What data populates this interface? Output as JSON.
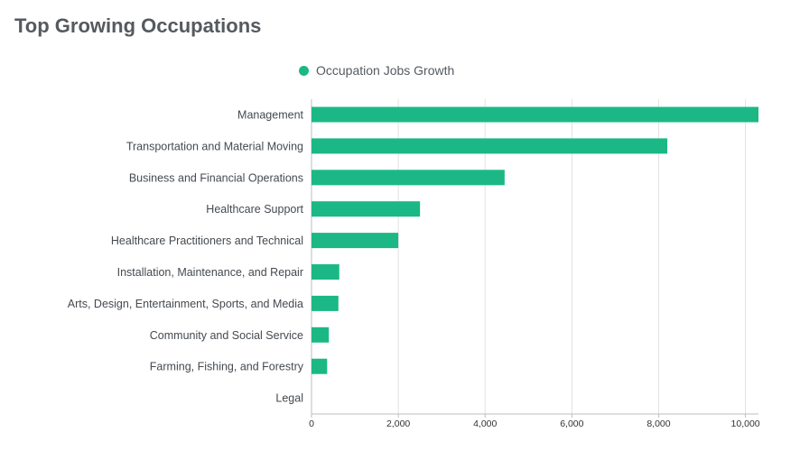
{
  "header": {
    "title": "Top Growing Occupations"
  },
  "colors": {
    "bar": "#1bb886",
    "grid": "#e2e2e2",
    "axis": "#bdbdbd"
  },
  "chart_data": {
    "type": "bar",
    "orientation": "horizontal",
    "title": "Top Growing Occupations",
    "xlabel": "",
    "ylabel": "",
    "categories": [
      "Management",
      "Transportation and Material Moving",
      "Business and Financial Operations",
      "Healthcare Support",
      "Healthcare Practitioners and Technical",
      "Installation, Maintenance, and Repair",
      "Arts, Design, Entertainment, Sports, and Media",
      "Community and Social Service",
      "Farming, Fishing, and Forestry",
      "Legal"
    ],
    "series": [
      {
        "name": "Occupation Jobs Growth",
        "values": [
          10300,
          8200,
          4450,
          2500,
          2000,
          640,
          620,
          400,
          360,
          0
        ]
      }
    ],
    "xlim": [
      0,
      10300
    ],
    "xticks": [
      0,
      2000,
      4000,
      6000,
      8000,
      10000
    ],
    "xtick_labels": [
      "0",
      "2,000",
      "4,000",
      "6,000",
      "8,000",
      "10,000"
    ],
    "grid": true,
    "legend": "top-center"
  }
}
